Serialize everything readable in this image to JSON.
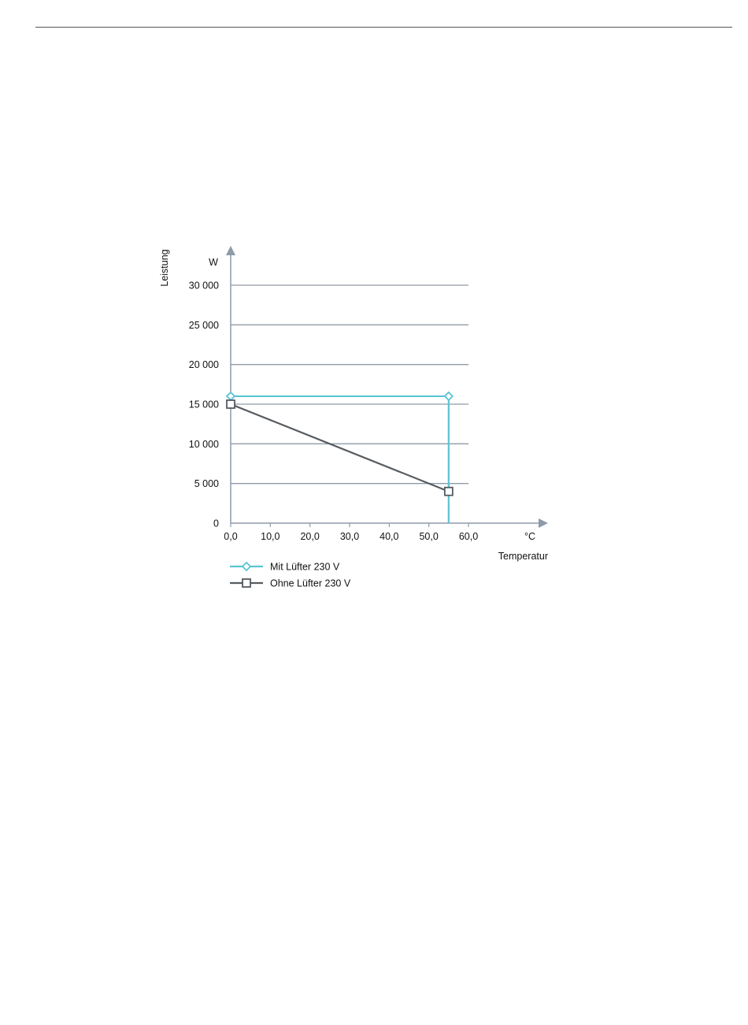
{
  "chart_data": {
    "type": "line",
    "ylabel": "Leistung",
    "yunit": "W",
    "xlabel": "Temperatur",
    "xunit": "°C",
    "xlim": [
      0,
      60
    ],
    "ylim": [
      0,
      30000
    ],
    "xticks": [
      0,
      10,
      20,
      30,
      40,
      50,
      60
    ],
    "xtick_labels": [
      "0,0",
      "10,0",
      "20,0",
      "30,0",
      "40,0",
      "50,0",
      "60,0"
    ],
    "yticks": [
      0,
      5000,
      10000,
      15000,
      20000,
      25000,
      30000
    ],
    "ytick_labels": [
      "0",
      "5 000",
      "10 000",
      "15 000",
      "20 000",
      "25 000",
      "30 000"
    ],
    "grid": true,
    "legend_position": "bottom-left",
    "series": [
      {
        "name": "Mit Lüfter 230 V",
        "color": "#5bc4d4",
        "marker": "diamond",
        "x": [
          0,
          55
        ],
        "y": [
          16000,
          16000
        ],
        "drop_to_zero_at_end": true
      },
      {
        "name": "Ohne Lüfter 230 V",
        "color": "#555b60",
        "marker": "square",
        "x": [
          0,
          55
        ],
        "y": [
          15000,
          4000
        ]
      }
    ]
  }
}
